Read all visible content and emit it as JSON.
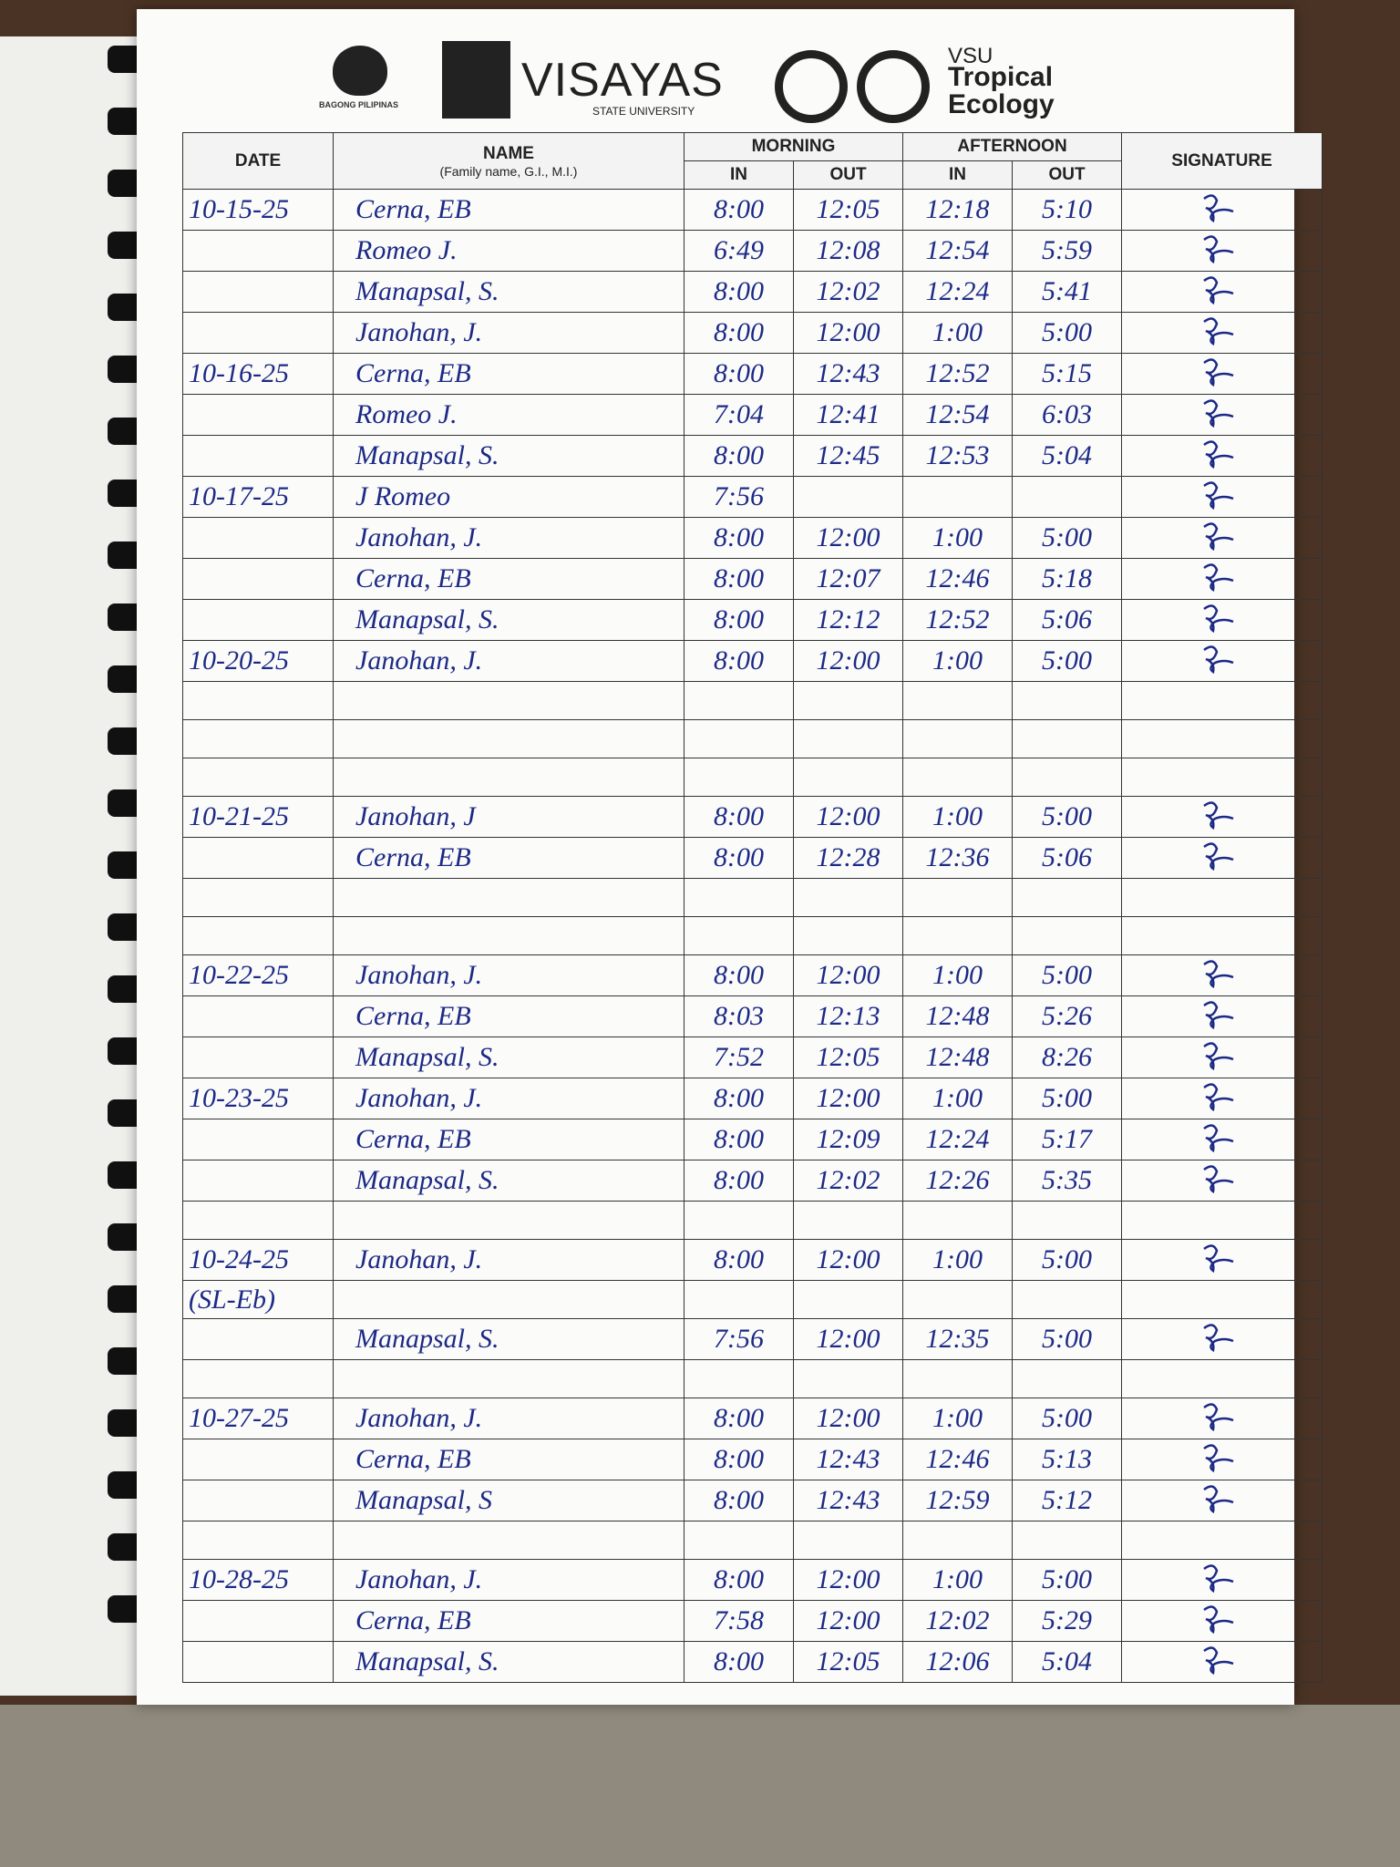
{
  "header": {
    "logo_left": "BAGONG PILIPINAS",
    "university": "VISAYAS",
    "university_sub": "STATE UNIVERSITY",
    "unit_abbr": "VSU",
    "unit_name_1": "Tropical",
    "unit_name_2": "Ecology"
  },
  "table": {
    "columns": {
      "date": "DATE",
      "name": "NAME",
      "name_note": "(Family name, G.I., M.I.)",
      "morning": "MORNING",
      "afternoon": "AFTERNOON",
      "in": "IN",
      "out": "OUT",
      "signature": "SIGNATURE"
    },
    "rows": [
      [
        "10-15-25",
        "Cerna, EB",
        "8:00",
        "12:05",
        "12:18",
        "5:10"
      ],
      [
        null,
        "Romeo J.",
        "6:49",
        "12:08",
        "12:54",
        "5:59"
      ],
      [
        null,
        "Manapsal, S.",
        "8:00",
        "12:02",
        "12:24",
        "5:41"
      ],
      [
        null,
        "Janohan, J.",
        "8:00",
        "12:00",
        "1:00",
        "5:00"
      ],
      [
        "10-16-25",
        "Cerna, EB",
        "8:00",
        "12:43",
        "12:52",
        "5:15"
      ],
      [
        null,
        "Romeo J.",
        "7:04",
        "12:41",
        "12:54",
        "6:03"
      ],
      [
        null,
        "Manapsal, S.",
        "8:00",
        "12:45",
        "12:53",
        "5:04"
      ],
      [
        "10-17-25",
        "J Romeo",
        "7:56",
        null,
        null,
        null
      ],
      [
        null,
        "Janohan, J.",
        "8:00",
        "12:00",
        "1:00",
        "5:00"
      ],
      [
        null,
        "Cerna, EB",
        "8:00",
        "12:07",
        "12:46",
        "5:18"
      ],
      [
        null,
        "Manapsal, S.",
        "8:00",
        "12:12",
        "12:52",
        "5:06"
      ],
      [
        "10-20-25",
        "Janohan, J.",
        "8:00",
        "12:00",
        "1:00",
        "5:00"
      ],
      [
        null,
        null,
        null,
        null,
        null,
        null
      ],
      [
        null,
        null,
        null,
        null,
        null,
        null
      ],
      [
        null,
        null,
        null,
        null,
        null,
        null
      ],
      [
        "10-21-25",
        "Janohan, J",
        "8:00",
        "12:00",
        "1:00",
        "5:00"
      ],
      [
        null,
        "Cerna, EB",
        "8:00",
        "12:28",
        "12:36",
        "5:06"
      ],
      [
        null,
        null,
        null,
        null,
        null,
        null
      ],
      [
        null,
        null,
        null,
        null,
        null,
        null
      ],
      [
        "10-22-25",
        "Janohan, J.",
        "8:00",
        "12:00",
        "1:00",
        "5:00"
      ],
      [
        null,
        "Cerna, EB",
        "8:03",
        "12:13",
        "12:48",
        "5:26"
      ],
      [
        null,
        "Manapsal, S.",
        "7:52",
        "12:05",
        "12:48",
        "8:26"
      ],
      [
        "10-23-25",
        "Janohan, J.",
        "8:00",
        "12:00",
        "1:00",
        "5:00"
      ],
      [
        null,
        "Cerna, EB",
        "8:00",
        "12:09",
        "12:24",
        "5:17"
      ],
      [
        null,
        "Manapsal, S.",
        "8:00",
        "12:02",
        "12:26",
        "5:35"
      ],
      [
        null,
        null,
        null,
        null,
        null,
        null
      ],
      [
        "10-24-25",
        "Janohan, J.",
        "8:00",
        "12:00",
        "1:00",
        "5:00"
      ],
      [
        "(SL-Eb)",
        null,
        null,
        null,
        null,
        null
      ],
      [
        null,
        "Manapsal, S.",
        "7:56",
        "12:00",
        "12:35",
        "5:00"
      ],
      [
        null,
        null,
        null,
        null,
        null,
        null
      ],
      [
        "10-27-25",
        "Janohan, J.",
        "8:00",
        "12:00",
        "1:00",
        "5:00"
      ],
      [
        null,
        "Cerna, EB",
        "8:00",
        "12:43",
        "12:46",
        "5:13"
      ],
      [
        null,
        "Manapsal, S",
        "8:00",
        "12:43",
        "12:59",
        "5:12"
      ],
      [
        null,
        null,
        null,
        null,
        null,
        null
      ],
      [
        "10-28-25",
        "Janohan, J.",
        "8:00",
        "12:00",
        "1:00",
        "5:00"
      ],
      [
        null,
        "Cerna, EB",
        "7:58",
        "12:00",
        "12:02",
        "5:29"
      ],
      [
        null,
        "Manapsal, S.",
        "8:00",
        "12:05",
        "12:06",
        "5:04"
      ]
    ]
  }
}
